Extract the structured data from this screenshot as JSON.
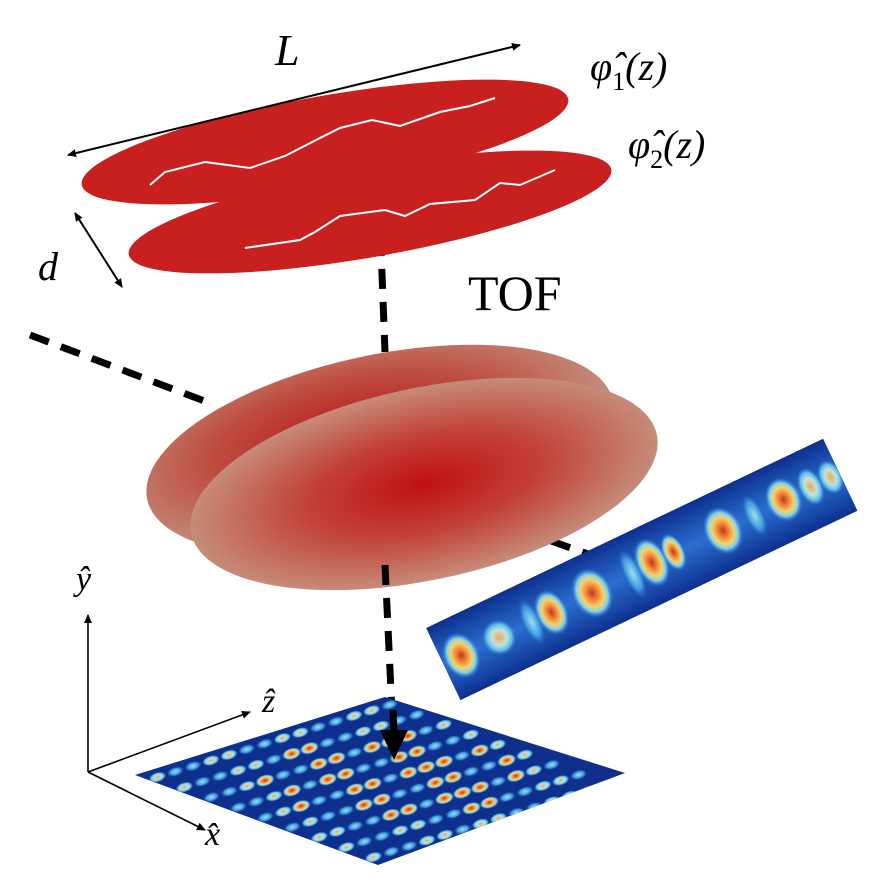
{
  "labels": {
    "length": "L",
    "separation": "d",
    "tof": "TOF",
    "phi1": {
      "base": "φ̂",
      "sub": "1",
      "arg": "(z)"
    },
    "phi2": {
      "base": "φ̂",
      "sub": "2",
      "arg": "(z)"
    },
    "axis_y": "ŷ",
    "axis_z": "ẑ",
    "axis_x": "x̂"
  },
  "colors": {
    "condensate_red": "#c8201f",
    "phase_line": "#ffffff",
    "cloud_center": "#c01818",
    "cloud_edge": "#c79a86",
    "colormap_low": "#0b2a8a",
    "colormap_mid": "#4fb6e6",
    "colormap_high": "#f6b24a",
    "colormap_peak": "#c9321b",
    "guide_line": "#000000"
  },
  "icons": {
    "projection_arrow": "arrow-down-icon",
    "double_arrow": "double-headed-arrow-icon"
  }
}
